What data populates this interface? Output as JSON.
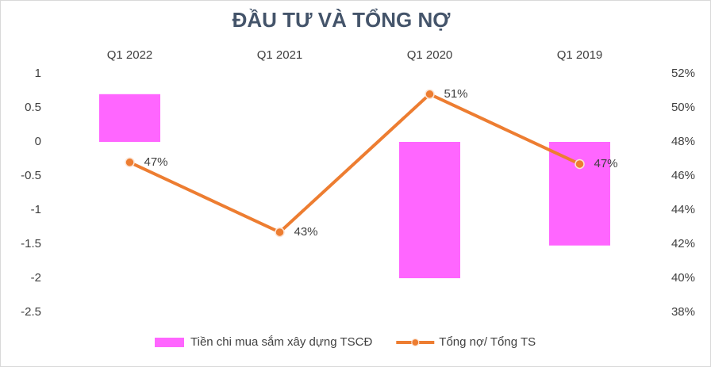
{
  "chart_data": {
    "type": "bar-line",
    "title": "ĐẦU TƯ VÀ TỔNG NỢ",
    "categories": [
      "Q1 2022",
      "Q1 2021",
      "Q1 2020",
      "Q1 2019"
    ],
    "series": [
      {
        "name": "Tiền chi mua sắm xây dựng TSCĐ",
        "type": "bar",
        "color": "#ff66ff",
        "values": [
          0.7,
          0,
          -2,
          -1.52
        ]
      },
      {
        "name": "Tổng nợ/ Tổng TS",
        "type": "line",
        "axis": "y2",
        "color": "#ed7d31",
        "values": [
          46.8,
          42.7,
          50.8,
          46.7
        ],
        "value_labels": [
          "47%",
          "43%",
          "51%",
          "47%"
        ]
      }
    ],
    "ylim": [
      -2.5,
      1
    ],
    "yticks": [
      1,
      0.5,
      0,
      -0.5,
      -1,
      -1.5,
      -2,
      -2.5
    ],
    "y2lim": [
      38,
      52
    ],
    "y2ticks": [
      {
        "value": 52,
        "label": "52%"
      },
      {
        "value": 50,
        "label": "50%"
      },
      {
        "value": 48,
        "label": "48%"
      },
      {
        "value": 46,
        "label": "46%"
      },
      {
        "value": 44,
        "label": "44%"
      },
      {
        "value": 42,
        "label": "42%"
      },
      {
        "value": 40,
        "label": "40%"
      },
      {
        "value": 38,
        "label": "38%"
      }
    ],
    "grid": false,
    "legend": "bottom"
  }
}
